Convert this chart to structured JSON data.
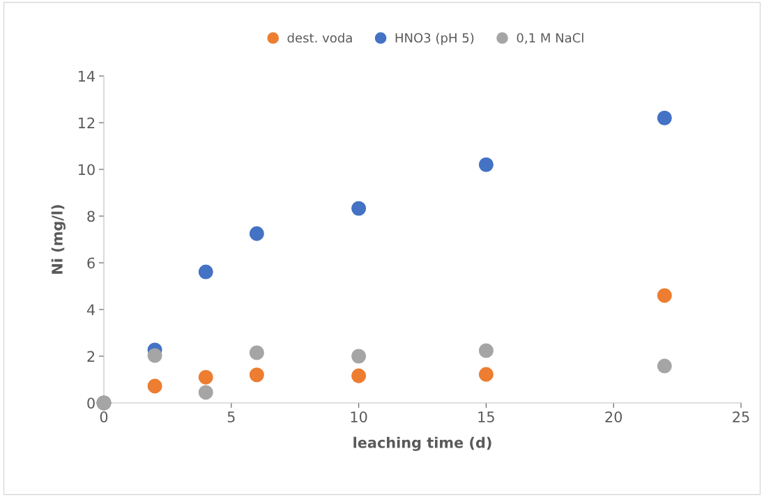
{
  "chart_data": {
    "type": "scatter",
    "xlabel": "leaching time (d)",
    "ylabel": "Ni (mg/l)",
    "xlim": [
      0,
      25
    ],
    "xticks": [
      0,
      5,
      10,
      15,
      20,
      25
    ],
    "ylim": [
      0,
      14
    ],
    "yticks": [
      0,
      2,
      4,
      6,
      8,
      10,
      12,
      14
    ],
    "x": [
      0,
      2,
      4,
      6,
      10,
      15,
      22
    ],
    "series": [
      {
        "name": "dest. voda",
        "color": "#ed7d31",
        "values": [
          0,
          0.72,
          1.1,
          1.2,
          1.16,
          1.22,
          4.6
        ]
      },
      {
        "name": "HNO3 (pH 5)",
        "color": "#4472c4",
        "values": [
          0,
          2.27,
          5.61,
          7.25,
          8.33,
          10.2,
          12.2
        ]
      },
      {
        "name": "0,1 M NaCl",
        "color": "#a5a5a5",
        "values": [
          0,
          2.03,
          0.45,
          2.15,
          2.0,
          2.24,
          1.58
        ]
      }
    ],
    "marker": "circle",
    "legend": "top",
    "grid": false
  }
}
